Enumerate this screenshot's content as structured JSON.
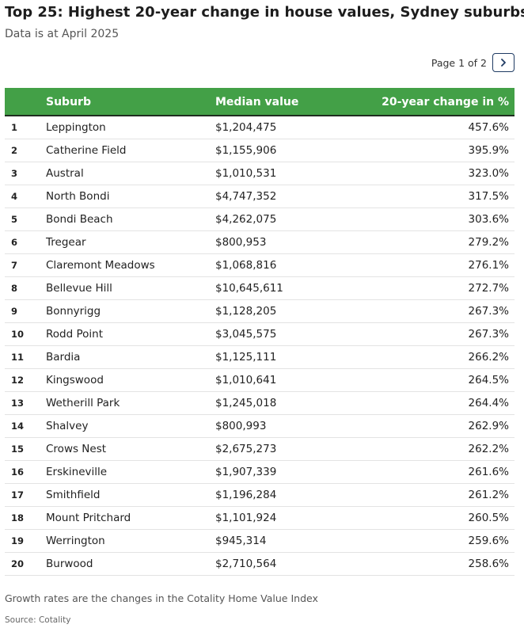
{
  "title": "Top 25: Highest 20-year change in house values, Sydney suburbs",
  "subtitle": "Data is at April 2025",
  "pager": {
    "text": "Page 1 of 2",
    "next_icon": "chevron-right-icon"
  },
  "colors": {
    "header_bg": "#43a047",
    "header_text": "#ffffff",
    "button_border": "#1f3b63"
  },
  "note": "Growth rates are the changes in the Cotality Home Value Index",
  "source": "Source: Cotality",
  "chart_data": {
    "type": "table",
    "title": "Top 25: Highest 20-year change in house values, Sydney suburbs",
    "columns": [
      "",
      "Suburb",
      "Median value",
      "20-year change in %"
    ],
    "rows": [
      [
        "1",
        "Leppington",
        "$1,204,475",
        "457.6%"
      ],
      [
        "2",
        "Catherine Field",
        "$1,155,906",
        "395.9%"
      ],
      [
        "3",
        "Austral",
        "$1,010,531",
        "323.0%"
      ],
      [
        "4",
        "North Bondi",
        "$4,747,352",
        "317.5%"
      ],
      [
        "5",
        "Bondi Beach",
        "$4,262,075",
        "303.6%"
      ],
      [
        "6",
        "Tregear",
        "$800,953",
        "279.2%"
      ],
      [
        "7",
        "Claremont Meadows",
        "$1,068,816",
        "276.1%"
      ],
      [
        "8",
        "Bellevue Hill",
        "$10,645,611",
        "272.7%"
      ],
      [
        "9",
        "Bonnyrigg",
        "$1,128,205",
        "267.3%"
      ],
      [
        "10",
        "Rodd Point",
        "$3,045,575",
        "267.3%"
      ],
      [
        "11",
        "Bardia",
        "$1,125,111",
        "266.2%"
      ],
      [
        "12",
        "Kingswood",
        "$1,010,641",
        "264.5%"
      ],
      [
        "13",
        "Wetherill Park",
        "$1,245,018",
        "264.4%"
      ],
      [
        "14",
        "Shalvey",
        "$800,993",
        "262.9%"
      ],
      [
        "15",
        "Crows Nest",
        "$2,675,273",
        "262.2%"
      ],
      [
        "16",
        "Erskineville",
        "$1,907,339",
        "261.6%"
      ],
      [
        "17",
        "Smithfield",
        "$1,196,284",
        "261.2%"
      ],
      [
        "18",
        "Mount Pritchard",
        "$1,101,924",
        "260.5%"
      ],
      [
        "19",
        "Werrington",
        "$945,314",
        "259.6%"
      ],
      [
        "20",
        "Burwood",
        "$2,710,564",
        "258.6%"
      ]
    ]
  }
}
